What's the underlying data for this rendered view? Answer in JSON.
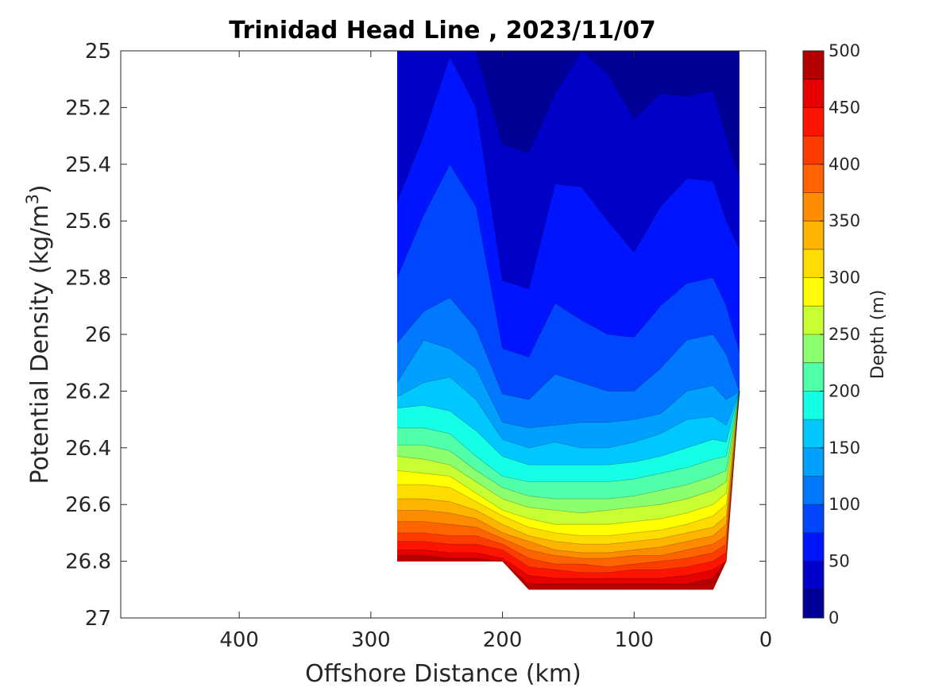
{
  "chart_data": {
    "type": "contour",
    "title": "Trinidad Head Line , 2023/11/07",
    "xlabel": "Offshore Distance (km)",
    "ylabel_main": "Potential Density (kg/m",
    "ylabel_sup": "3",
    "ylabel_close": ")",
    "x_reversed": true,
    "y_reversed": true,
    "xlim": [
      0,
      490
    ],
    "ylim": [
      25,
      27
    ],
    "xticks": [
      400,
      300,
      200,
      100,
      0
    ],
    "yticks": [
      "25",
      "25.2",
      "25.4",
      "25.6",
      "25.8",
      "26",
      "26.2",
      "26.4",
      "26.6",
      "26.8",
      "27"
    ],
    "colorbar": {
      "label": "Depth (m)",
      "clim": [
        0,
        500
      ],
      "ticks": [
        0,
        50,
        100,
        150,
        200,
        250,
        300,
        350,
        400,
        450,
        500
      ],
      "level_step": 25,
      "colors": [
        "#000096",
        "#0000c8",
        "#0014ff",
        "#0046ff",
        "#0078ff",
        "#00a0ff",
        "#00c8ff",
        "#14ffe6",
        "#50ffaa",
        "#8cff6e",
        "#c8ff32",
        "#ffff00",
        "#ffdc00",
        "#ffb400",
        "#ff8c00",
        "#ff6400",
        "#ff3c00",
        "#ff1400",
        "#e60000",
        "#b40000"
      ]
    },
    "stations_x": [
      280,
      260,
      240,
      220,
      200,
      180,
      160,
      140,
      120,
      100,
      80,
      60,
      40,
      30,
      20
    ],
    "data_bottom_density": [
      26.8,
      26.8,
      26.8,
      26.8,
      26.8,
      26.9,
      26.9,
      26.9,
      26.9,
      26.9,
      26.9,
      26.9,
      26.9,
      26.8,
      26.2
    ],
    "isolines": [
      {
        "depth": 25,
        "densities": [
          25.0,
          25.0,
          25.0,
          25.0,
          25.33,
          25.36,
          25.15,
          25.0,
          25.08,
          25.24,
          25.15,
          25.16,
          25.14,
          25.3,
          25.45
        ]
      },
      {
        "depth": 50,
        "densities": [
          25.53,
          25.3,
          25.02,
          25.2,
          25.81,
          25.84,
          25.47,
          25.48,
          25.6,
          25.71,
          25.55,
          25.45,
          25.46,
          25.6,
          25.7
        ]
      },
      {
        "depth": 75,
        "densities": [
          25.8,
          25.58,
          25.4,
          25.55,
          26.05,
          26.08,
          25.89,
          25.95,
          26.0,
          26.01,
          25.9,
          25.82,
          25.8,
          25.9,
          26.06
        ]
      },
      {
        "depth": 100,
        "densities": [
          26.03,
          25.92,
          25.87,
          25.98,
          26.21,
          26.23,
          26.14,
          26.17,
          26.2,
          26.2,
          26.12,
          26.02,
          26.0,
          26.07,
          26.2
        ]
      },
      {
        "depth": 125,
        "densities": [
          26.17,
          26.02,
          26.05,
          26.12,
          26.31,
          26.33,
          26.32,
          26.31,
          26.31,
          26.3,
          26.28,
          26.2,
          26.18,
          26.23,
          26.28
        ]
      },
      {
        "depth": 150,
        "densities": [
          26.22,
          26.17,
          26.15,
          26.23,
          26.37,
          26.4,
          26.38,
          26.4,
          26.4,
          26.38,
          26.35,
          26.3,
          26.29,
          26.32,
          26.34
        ]
      },
      {
        "depth": 175,
        "densities": [
          26.26,
          26.25,
          26.27,
          26.34,
          26.43,
          26.46,
          26.46,
          26.46,
          26.46,
          26.45,
          26.43,
          26.4,
          26.37,
          26.38,
          26.38
        ]
      },
      {
        "depth": 200,
        "densities": [
          26.33,
          26.33,
          26.35,
          26.43,
          26.5,
          26.52,
          26.52,
          26.52,
          26.52,
          26.51,
          26.49,
          26.47,
          26.44,
          26.43,
          26.42
        ]
      },
      {
        "depth": 225,
        "densities": [
          26.39,
          26.39,
          26.41,
          26.48,
          26.54,
          26.57,
          26.58,
          26.58,
          26.58,
          26.57,
          26.55,
          26.53,
          26.5,
          26.48,
          26.46
        ]
      },
      {
        "depth": 250,
        "densities": [
          26.43,
          26.44,
          26.46,
          26.52,
          26.58,
          26.61,
          26.62,
          26.63,
          26.62,
          26.61,
          26.6,
          26.58,
          26.55,
          26.52,
          26.5
        ]
      },
      {
        "depth": 275,
        "densities": [
          26.48,
          26.49,
          26.5,
          26.56,
          26.62,
          26.65,
          26.67,
          26.67,
          26.67,
          26.66,
          26.65,
          26.63,
          26.6,
          26.56,
          26.54
        ]
      },
      {
        "depth": 300,
        "densities": [
          26.53,
          26.53,
          26.54,
          26.59,
          26.64,
          26.68,
          26.7,
          26.71,
          26.71,
          26.7,
          26.69,
          26.67,
          26.64,
          26.6,
          26.58
        ]
      },
      {
        "depth": 325,
        "densities": [
          26.58,
          26.58,
          26.59,
          26.62,
          26.67,
          26.71,
          26.73,
          26.74,
          26.74,
          26.73,
          26.72,
          26.7,
          26.68,
          26.64,
          26.62
        ]
      },
      {
        "depth": 350,
        "densities": [
          26.62,
          26.62,
          26.63,
          26.65,
          26.7,
          26.73,
          26.76,
          26.77,
          26.77,
          26.76,
          26.75,
          26.73,
          26.71,
          26.67,
          26.66
        ]
      },
      {
        "depth": 375,
        "densities": [
          26.66,
          26.66,
          26.67,
          26.68,
          26.72,
          26.76,
          26.78,
          26.79,
          26.79,
          26.78,
          26.78,
          26.76,
          26.74,
          26.71,
          26.7
        ]
      },
      {
        "depth": 400,
        "densities": [
          26.7,
          26.7,
          26.71,
          26.71,
          26.74,
          26.79,
          26.81,
          26.81,
          26.82,
          26.81,
          26.8,
          26.79,
          26.77,
          26.74,
          26.74
        ]
      },
      {
        "depth": 425,
        "densities": [
          26.73,
          26.73,
          26.74,
          26.74,
          26.76,
          26.82,
          26.83,
          26.84,
          26.84,
          26.83,
          26.83,
          26.82,
          26.8,
          26.77,
          26.78
        ]
      },
      {
        "depth": 450,
        "densities": [
          26.76,
          26.76,
          26.77,
          26.77,
          26.79,
          26.85,
          26.86,
          26.86,
          26.86,
          26.86,
          26.86,
          26.85,
          26.83,
          26.8,
          26.82
        ]
      },
      {
        "depth": 475,
        "densities": [
          26.78,
          26.78,
          26.79,
          26.79,
          26.81,
          26.88,
          26.88,
          26.88,
          26.88,
          26.88,
          26.88,
          26.88,
          26.86,
          26.83,
          26.86
        ]
      }
    ]
  }
}
